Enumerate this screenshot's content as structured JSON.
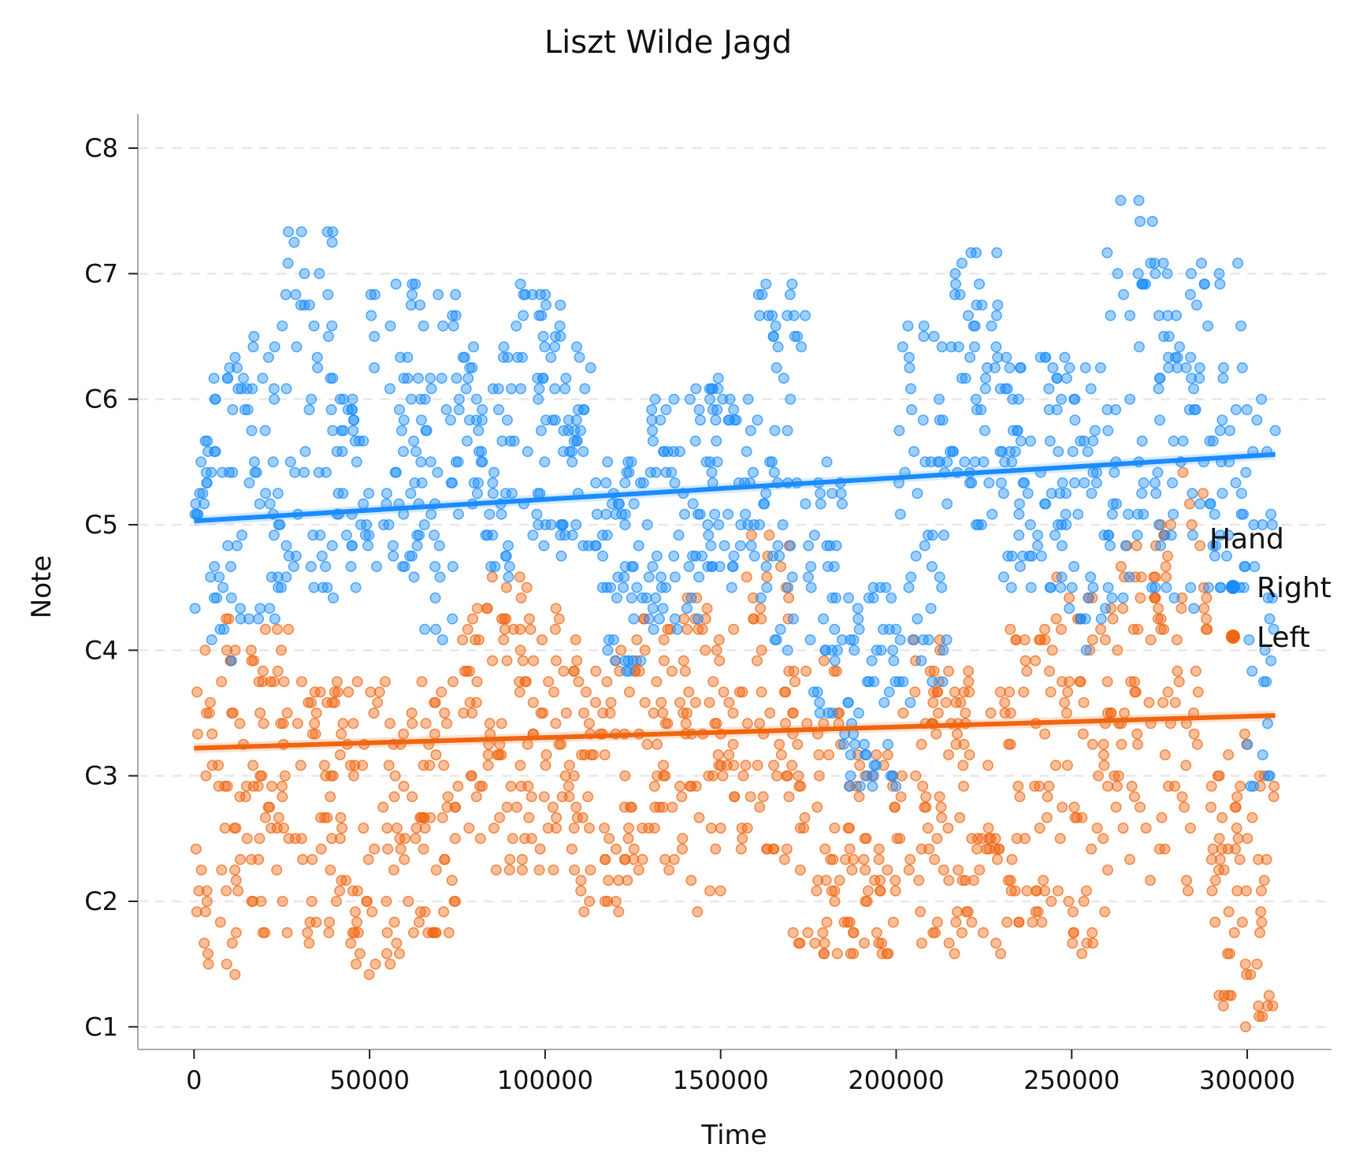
{
  "chart_data": {
    "type": "scatter",
    "title": "Liszt Wilde Jagd",
    "xlabel": "Time",
    "ylabel": "Note",
    "xlim": [
      -16000,
      324000
    ],
    "ylim": [
      0.82,
      8.27
    ],
    "x_ticks": [
      0,
      50000,
      100000,
      150000,
      200000,
      250000,
      300000
    ],
    "y_ticks": [
      {
        "value": 1,
        "label": "C1"
      },
      {
        "value": 2,
        "label": "C2"
      },
      {
        "value": 3,
        "label": "C3"
      },
      {
        "value": 4,
        "label": "C4"
      },
      {
        "value": 5,
        "label": "C5"
      },
      {
        "value": 6,
        "label": "C6"
      },
      {
        "value": 7,
        "label": "C7"
      },
      {
        "value": 8,
        "label": "C8"
      }
    ],
    "grid": "horizontal-dashed",
    "legend": {
      "title": "Hand",
      "placement": "center-right"
    },
    "series": [
      {
        "name": "Right",
        "color": "#1a8cff",
        "trend": {
          "x": [
            0,
            308000
          ],
          "y": [
            5.03,
            5.56
          ]
        },
        "ranges": [
          [
            0,
            5000,
            4.3,
            5.7
          ],
          [
            5000,
            15000,
            3.9,
            6.3
          ],
          [
            15000,
            25000,
            4.2,
            6.6
          ],
          [
            25000,
            40000,
            4.4,
            7.4
          ],
          [
            40000,
            50000,
            4.5,
            6.0
          ],
          [
            50000,
            65000,
            4.4,
            7.2
          ],
          [
            65000,
            75000,
            3.8,
            6.9
          ],
          [
            75000,
            90000,
            4.6,
            6.5
          ],
          [
            90000,
            105000,
            4.7,
            6.9
          ],
          [
            105000,
            115000,
            4.8,
            6.6
          ],
          [
            115000,
            130000,
            3.8,
            5.5
          ],
          [
            130000,
            145000,
            4.1,
            6.1
          ],
          [
            145000,
            160000,
            4.4,
            6.2
          ],
          [
            160000,
            175000,
            4.0,
            7.0
          ],
          [
            175000,
            185000,
            3.4,
            5.5
          ],
          [
            185000,
            200000,
            2.8,
            4.5
          ],
          [
            200000,
            215000,
            3.6,
            6.6
          ],
          [
            215000,
            230000,
            4.9,
            7.2
          ],
          [
            230000,
            245000,
            4.4,
            6.4
          ],
          [
            245000,
            260000,
            4.0,
            6.5
          ],
          [
            260000,
            275000,
            4.4,
            7.6
          ],
          [
            275000,
            290000,
            4.3,
            7.2
          ],
          [
            290000,
            300000,
            4.4,
            7.1
          ],
          [
            300000,
            308000,
            2.5,
            6.0
          ]
        ]
      },
      {
        "name": "Left",
        "color": "#f0650f",
        "trend": {
          "x": [
            0,
            308000
          ],
          "y": [
            3.22,
            3.48
          ]
        },
        "ranges": [
          [
            0,
            5000,
            1.0,
            4.0
          ],
          [
            5000,
            15000,
            1.4,
            4.4
          ],
          [
            15000,
            30000,
            1.7,
            4.2
          ],
          [
            30000,
            45000,
            1.6,
            3.8
          ],
          [
            45000,
            60000,
            1.4,
            3.8
          ],
          [
            60000,
            75000,
            1.7,
            3.8
          ],
          [
            75000,
            95000,
            2.2,
            4.6
          ],
          [
            95000,
            110000,
            2.2,
            4.4
          ],
          [
            110000,
            125000,
            1.9,
            4.1
          ],
          [
            125000,
            140000,
            2.2,
            4.3
          ],
          [
            140000,
            155000,
            1.9,
            4.6
          ],
          [
            155000,
            170000,
            2.2,
            5.0
          ],
          [
            170000,
            185000,
            1.6,
            4.0
          ],
          [
            185000,
            200000,
            1.5,
            3.2
          ],
          [
            200000,
            215000,
            1.7,
            4.3
          ],
          [
            215000,
            230000,
            1.6,
            4.0
          ],
          [
            230000,
            245000,
            1.8,
            4.2
          ],
          [
            245000,
            260000,
            1.6,
            4.6
          ],
          [
            260000,
            275000,
            2.0,
            5.0
          ],
          [
            275000,
            290000,
            2.0,
            5.4
          ],
          [
            290000,
            308000,
            1.0,
            3.3
          ]
        ]
      }
    ]
  }
}
